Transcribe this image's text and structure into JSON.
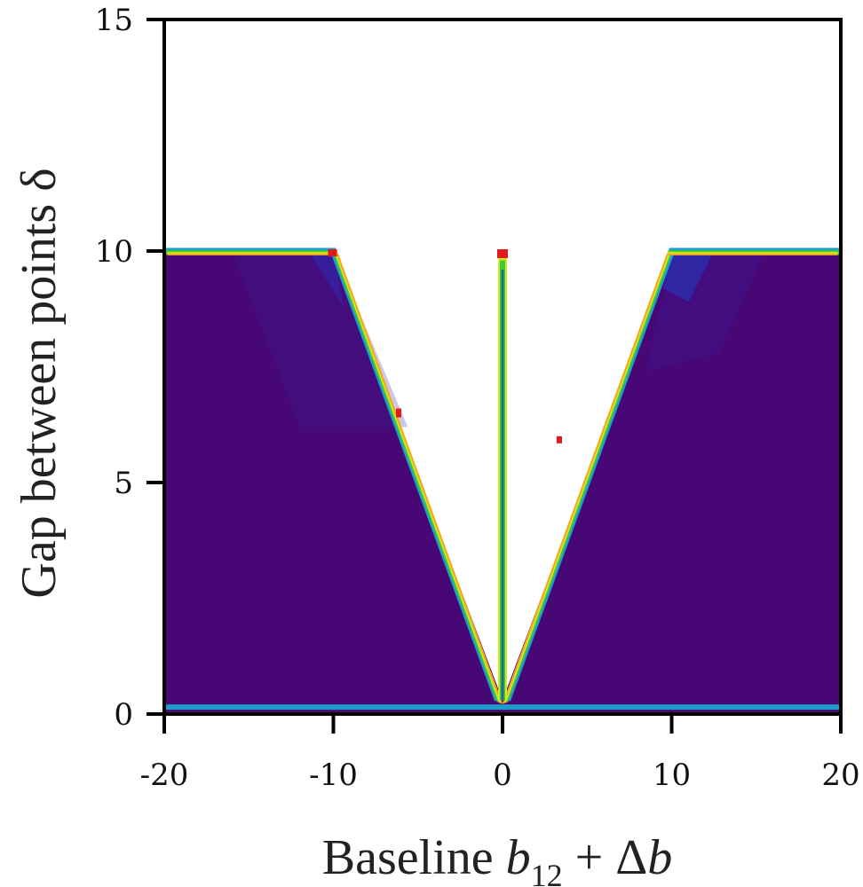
{
  "chart_data": {
    "type": "heatmap",
    "xlabel": "Baseline",
    "xlabel_math": [
      "b",
      "12",
      " + Δ",
      "b"
    ],
    "ylabel": "Gap between points δ",
    "xlim": [
      -20,
      20
    ],
    "ylim": [
      0,
      15
    ],
    "xticks": [
      -20,
      -10,
      0,
      10,
      20
    ],
    "xtick_labels": [
      "-20",
      "-10",
      "0",
      "10",
      "20"
    ],
    "yticks": [
      0,
      5,
      10,
      15
    ],
    "ytick_labels": [
      "0",
      "5",
      "10",
      "15"
    ],
    "filled_region": {
      "color": "#470875",
      "y_range": [
        0,
        10
      ],
      "excluded_v_region": "|x| < δ (0 < δ ≤ 10)",
      "v_region_apex": [
        0,
        0.3
      ],
      "v_region_top_corners": [
        [
          -10,
          10
        ],
        [
          10,
          10
        ]
      ],
      "center_line_x": 0,
      "center_line_y_range": [
        0.3,
        10
      ]
    },
    "boundary_colors": [
      "#e11b1b",
      "#f5a623",
      "#d7e81a",
      "#3ccc3c",
      "#1e9ccc"
    ],
    "shading_colors": [
      "#3d1a9a",
      "#2b2bb0",
      "#1e3fc8"
    ],
    "grid": false
  }
}
